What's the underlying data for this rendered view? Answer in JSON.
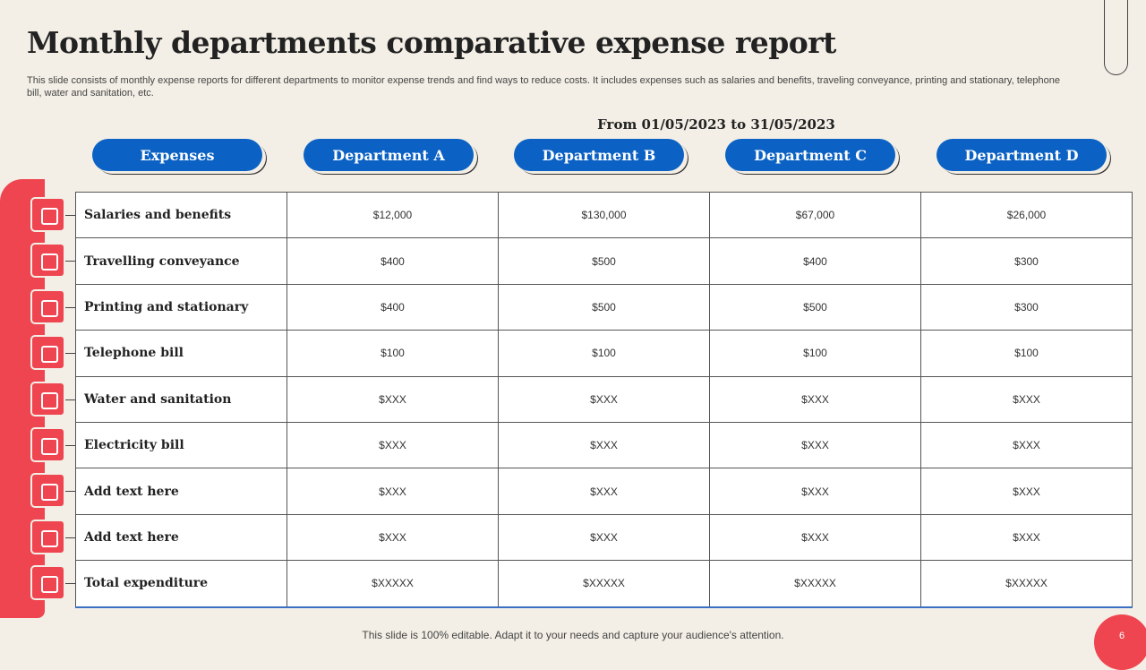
{
  "header": {
    "title": "Monthly departments comparative expense report",
    "subtitle": "This slide consists of monthly expense reports for different departments to monitor expense trends and find ways to reduce costs. It includes expenses such as salaries and benefits, traveling conveyance, printing and stationary, telephone bill, water and sanitation, etc.",
    "date_range": "From 01/05/2023 to 31/05/2023"
  },
  "table": {
    "headers": [
      "Expenses",
      "Department A",
      "Department B",
      "Department C",
      "Department D"
    ],
    "rows": [
      [
        "Salaries and benefits",
        "$12,000",
        "$130,000",
        "$67,000",
        "$26,000"
      ],
      [
        "Travelling conveyance",
        "$400",
        "$500",
        "$400",
        "$300"
      ],
      [
        "Printing and stationary",
        "$400",
        "$500",
        "$500",
        "$300"
      ],
      [
        "Telephone bill",
        "$100",
        "$100",
        "$100",
        "$100"
      ],
      [
        "Water and sanitation",
        "$XXX",
        "$XXX",
        "$XXX",
        "$XXX"
      ],
      [
        "Electricity bill",
        "$XXX",
        "$XXX",
        "$XXX",
        "$XXX"
      ],
      [
        "Add text here",
        "$XXX",
        "$XXX",
        "$XXX",
        "$XXX"
      ],
      [
        "Add text here",
        "$XXX",
        "$XXX",
        "$XXX",
        "$XXX"
      ],
      [
        "Total expenditure",
        "$XXXXX",
        "$XXXXX",
        "$XXXXX",
        "$XXXXX"
      ]
    ]
  },
  "footer": {
    "note": "This slide is 100% editable. Adapt it to your needs and capture your audience's attention.",
    "page": "6"
  }
}
